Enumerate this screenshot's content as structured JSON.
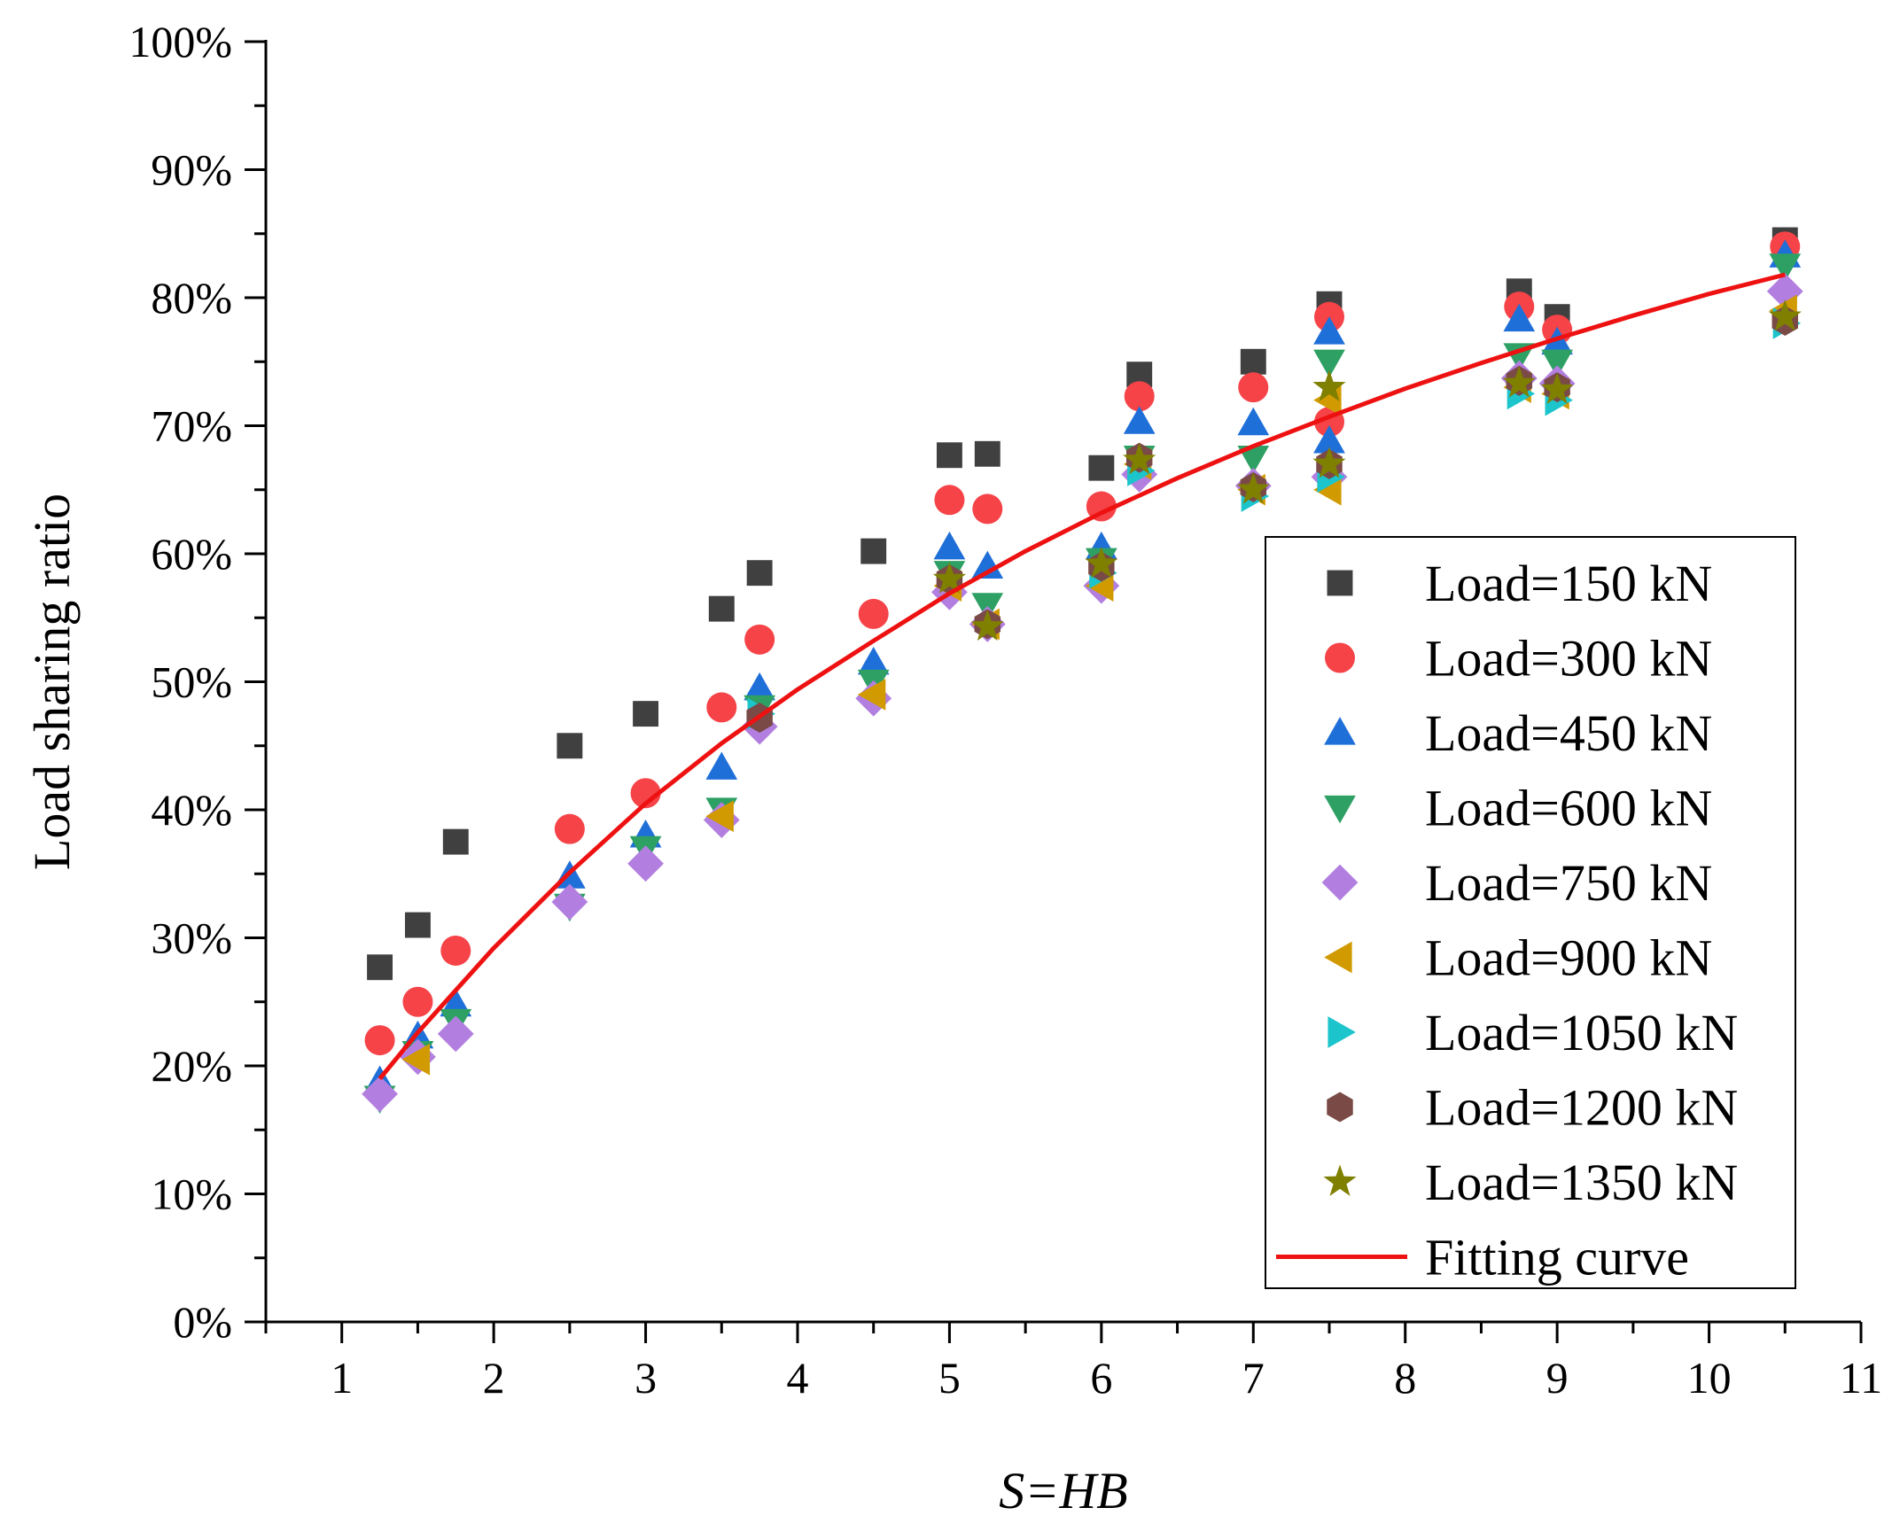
{
  "chart_data": {
    "type": "scatter",
    "title": "",
    "xlabel": "S=HB",
    "ylabel": "Load sharing ratio",
    "xlim": [
      0.5,
      11
    ],
    "ylim": [
      0,
      100
    ],
    "x_ticks": [
      1,
      2,
      3,
      4,
      5,
      6,
      7,
      8,
      9,
      10,
      11
    ],
    "x_tick_labels": [
      "1",
      "2",
      "3",
      "4",
      "5",
      "6",
      "7",
      "8",
      "9",
      "10",
      "11"
    ],
    "y_ticks": [
      0,
      10,
      20,
      30,
      40,
      50,
      60,
      70,
      80,
      90,
      100
    ],
    "y_tick_labels": [
      "0%",
      "10%",
      "20%",
      "30%",
      "40%",
      "50%",
      "60%",
      "70%",
      "80%",
      "90%",
      "100%"
    ],
    "grid": false,
    "legend_position": "bottom-right",
    "series": [
      {
        "name": "Load=150 kN",
        "label": "Load=150 kN",
        "marker": "square",
        "color": "#404040",
        "x": [
          1.25,
          1.5,
          1.75,
          2.5,
          3,
          3.5,
          3.75,
          4.5,
          5,
          5.25,
          6,
          6.25,
          7,
          7.5,
          8.75,
          9,
          10.5
        ],
        "y": [
          27.7,
          31,
          37.5,
          45,
          47.5,
          55.7,
          58.5,
          60.2,
          67.7,
          67.8,
          66.7,
          74,
          75,
          79.5,
          80.5,
          78.5,
          84.5
        ]
      },
      {
        "name": "Load=300 kN",
        "label": "Load=300 kN",
        "marker": "circle",
        "color": "#f54348",
        "x": [
          1.25,
          1.5,
          1.75,
          2.5,
          3,
          3.5,
          3.75,
          4.5,
          5,
          5.25,
          6,
          6.25,
          7,
          7.5,
          7.5,
          8.75,
          9,
          10.5
        ],
        "y": [
          22,
          25,
          29,
          38.5,
          41.3,
          48,
          53.3,
          55.3,
          64.2,
          63.5,
          63.7,
          72.3,
          73,
          78.5,
          70.3,
          79.3,
          77.5,
          84
        ]
      },
      {
        "name": "Load=450 kN",
        "label": "Load=450 kN",
        "marker": "triangle-up",
        "color": "#1f6fd9",
        "x": [
          1.25,
          1.5,
          1.75,
          2.5,
          3,
          3.5,
          3.75,
          4.5,
          5,
          5.25,
          6,
          6.25,
          7,
          7.5,
          7.5,
          8.75,
          9,
          10.5
        ],
        "y": [
          18.8,
          22.3,
          24.8,
          34.8,
          38,
          43.3,
          49.5,
          51.5,
          60.5,
          59,
          60.5,
          70.3,
          70.2,
          77.3,
          68.8,
          78.3,
          76.5,
          83.3
        ]
      },
      {
        "name": "Load=600 kN",
        "label": "Load=600 kN",
        "marker": "triangle-down",
        "color": "#2ea064",
        "x": [
          1.25,
          1.5,
          1.75,
          2.5,
          3,
          3.5,
          3.75,
          4.5,
          5,
          5.25,
          6,
          6.25,
          7,
          7.5,
          8.75,
          9,
          10.5
        ],
        "y": [
          17.5,
          21,
          23.5,
          32.5,
          37,
          40,
          48,
          50,
          58.5,
          56,
          59.5,
          67.5,
          67.5,
          75,
          75.5,
          75,
          82.5
        ]
      },
      {
        "name": "Load=750 kN",
        "label": "Load=750 kN",
        "marker": "diamond",
        "color": "#b27fe0",
        "x": [
          1.25,
          1.5,
          1.75,
          2.5,
          3,
          3.5,
          3.75,
          4.5,
          5,
          5.25,
          6,
          6.25,
          7,
          7.5,
          8.75,
          9,
          10.5
        ],
        "y": [
          17.8,
          20.7,
          22.5,
          32.8,
          35.8,
          39.2,
          46.5,
          48.7,
          57,
          54.5,
          57.5,
          66.2,
          65.3,
          66,
          73.7,
          73.3,
          80.5
        ]
      },
      {
        "name": "Load=900 kN",
        "label": "Load=900 kN",
        "marker": "triangle-left",
        "color": "#d19a00",
        "x": [
          1.5,
          3.5,
          4.5,
          5,
          5.25,
          6,
          6.25,
          7,
          7.5,
          7.5,
          8.75,
          9,
          10.5
        ],
        "y": [
          20.5,
          39.5,
          49,
          57.5,
          54.5,
          57.5,
          67,
          65,
          65,
          72,
          73,
          72.5,
          79
        ]
      },
      {
        "name": "Load=1050 kN",
        "label": "Load=1050 kN",
        "marker": "triangle-right",
        "color": "#1cc4cc",
        "x": [
          3.75,
          6,
          6.25,
          7,
          7.5,
          8.75,
          9,
          10.5
        ],
        "y": [
          47.5,
          58.5,
          66.5,
          64.5,
          66,
          72.5,
          72,
          78
        ]
      },
      {
        "name": "Load=1200 kN",
        "label": "Load=1200 kN",
        "marker": "hexagon",
        "color": "#7a4a47",
        "x": [
          3.75,
          5,
          5.25,
          6,
          6.25,
          7,
          7.5,
          8.75,
          9,
          10.5
        ],
        "y": [
          47.2,
          58,
          54.5,
          59,
          67.5,
          65.2,
          67,
          73.5,
          73,
          78.2
        ]
      },
      {
        "name": "Load=1350 kN",
        "label": "Load=1350 kN",
        "marker": "star",
        "color": "#7f7f00",
        "x": [
          5,
          5.25,
          6,
          6.25,
          7,
          7.5,
          7.5,
          8.75,
          9,
          10.5
        ],
        "y": [
          58,
          54.3,
          59.2,
          67.3,
          65,
          73,
          67,
          73.3,
          72.8,
          78.5
        ]
      }
    ],
    "fitting_curve": {
      "name": "Fitting curve",
      "label": "Fitting curve",
      "color": "#ee1111",
      "x_range": [
        1.25,
        10.5
      ],
      "x": [
        1.25,
        1.5,
        2,
        2.5,
        3,
        3.5,
        4,
        4.5,
        5,
        5.5,
        6,
        6.5,
        7,
        7.5,
        8,
        8.5,
        9,
        9.5,
        10,
        10.5
      ],
      "y": [
        19,
        22.6,
        29.2,
        35.1,
        40.5,
        45.2,
        49.4,
        53.2,
        56.9,
        60.2,
        63.2,
        65.9,
        68.4,
        70.7,
        72.9,
        74.9,
        76.8,
        78.6,
        80.3,
        81.8
      ]
    }
  }
}
